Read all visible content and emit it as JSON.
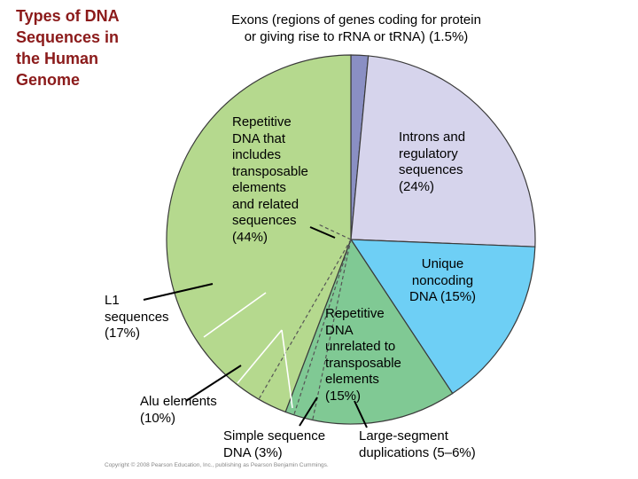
{
  "title": "Types of DNA\nSequences in\nthe Human\nGenome",
  "copyright": "Copyright © 2008 Pearson Education, Inc., publishing as Pearson Benjamin Cummings.",
  "chart_data": {
    "type": "pie",
    "title": "Types of DNA Sequences in the Human Genome",
    "slices": [
      {
        "name": "Exons (regions of genes coding for protein or giving rise to rRNA or tRNA)",
        "value": 1.5,
        "label": "Exons (regions of genes coding for protein\nor giving rise to rRNA or tRNA) (1.5%)",
        "color": "#8a8fc4"
      },
      {
        "name": "Introns and regulatory sequences",
        "value": 24,
        "label": "Introns and\nregulatory\nsequences\n(24%)",
        "color": "#d6d4ec"
      },
      {
        "name": "Unique noncoding DNA",
        "value": 15,
        "label": "Unique\nnoncoding\nDNA (15%)",
        "color": "#6ecff5"
      },
      {
        "name": "Repetitive DNA unrelated to transposable elements",
        "value": 15,
        "label": "Repetitive\nDNA\nunrelated to\ntransposable\nelements\n(15%)",
        "color": "#80c994"
      },
      {
        "name": "Repetitive DNA that includes transposable elements and related sequences",
        "value": 44,
        "label": "Repetitive\nDNA that\nincludes\ntransposable\nelements\nand related\nsequences\n(44%)",
        "color": "#b5d98e"
      }
    ],
    "sub_labels": [
      {
        "name": "L1 sequences",
        "label": "L1\nsequences\n(17%)",
        "value": 17
      },
      {
        "name": "Alu elements",
        "label": "Alu elements\n(10%)",
        "value": 10
      },
      {
        "name": "Simple sequence DNA",
        "label": "Simple sequence\nDNA (3%)",
        "value": 3
      },
      {
        "name": "Large-segment duplications",
        "label": "Large-segment\nduplications (5–6%)",
        "value": 5.5
      }
    ]
  }
}
